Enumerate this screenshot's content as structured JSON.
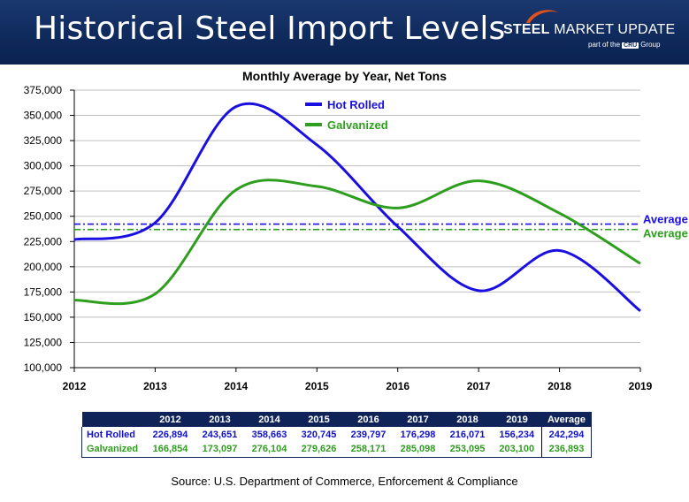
{
  "header": {
    "title": "Historical Steel Import Levels",
    "logo_steel": "STEEL",
    "logo_rest": " MARKET UPDATE",
    "logo_tag_prefix": "part of the",
    "logo_tag_badge": "CRU",
    "logo_tag_suffix": "Group"
  },
  "colors": {
    "header_bg": "#0f2a5c",
    "hot_rolled": "#1a0fe0",
    "galvanized": "#2e9e1e",
    "avg_hot_rolled": "#1a0fe0",
    "avg_galvanized": "#2e9e1e"
  },
  "chart_data": {
    "type": "line",
    "title": "Monthly Average by Year, Net Tons",
    "xlabel": "",
    "ylabel": "",
    "x": [
      2012,
      2013,
      2014,
      2015,
      2016,
      2017,
      2018,
      2019
    ],
    "x_tick_labels": [
      "2012",
      "2013",
      "2014",
      "2015",
      "2016",
      "2017",
      "2018",
      "2019"
    ],
    "ylim": [
      100000,
      375000
    ],
    "y_ticks": [
      100000,
      125000,
      150000,
      175000,
      200000,
      225000,
      250000,
      275000,
      300000,
      325000,
      350000,
      375000
    ],
    "y_tick_labels": [
      "100,000",
      "125,000",
      "150,000",
      "175,000",
      "200,000",
      "225,000",
      "250,000",
      "275,000",
      "300,000",
      "325,000",
      "350,000",
      "375,000"
    ],
    "grid": true,
    "legend_position": "top-center",
    "series": [
      {
        "name": "Hot Rolled",
        "values": [
          226894,
          243651,
          358663,
          320745,
          239797,
          176298,
          216071,
          156234
        ],
        "average": 242294,
        "average_label": "Average"
      },
      {
        "name": "Galvanized",
        "values": [
          166854,
          173097,
          276104,
          279626,
          258171,
          285098,
          253095,
          203100
        ],
        "average": 236893,
        "average_label": "Average"
      }
    ]
  },
  "table": {
    "headers": [
      "",
      "2012",
      "2013",
      "2014",
      "2015",
      "2016",
      "2017",
      "2018",
      "2019",
      "Average"
    ],
    "rows": [
      [
        "Hot Rolled",
        "226,894",
        "243,651",
        "358,663",
        "320,745",
        "239,797",
        "176,298",
        "216,071",
        "156,234",
        "242,294"
      ],
      [
        "Galvanized",
        "166,854",
        "173,097",
        "276,104",
        "279,626",
        "258,171",
        "285,098",
        "253,095",
        "203,100",
        "236,893"
      ]
    ]
  },
  "source": "Source: U.S. Department of Commerce, Enforcement & Compliance"
}
